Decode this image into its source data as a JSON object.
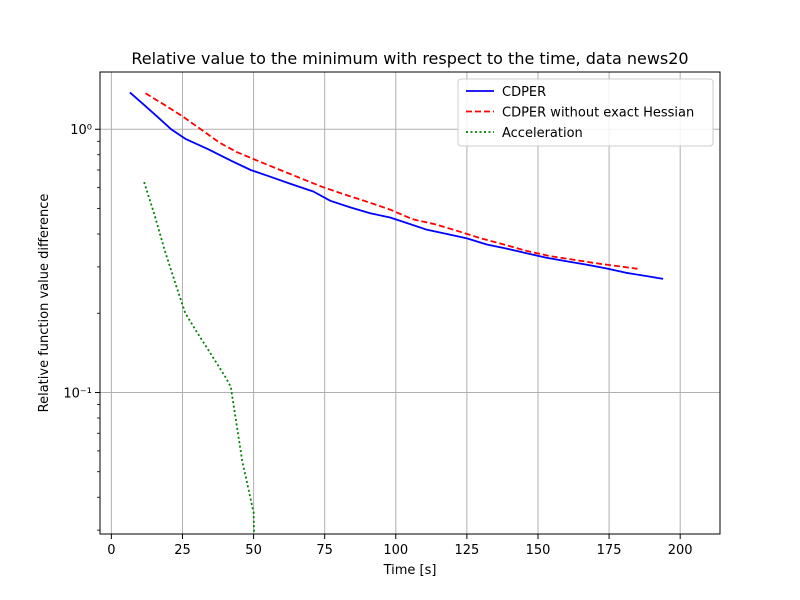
{
  "chart_data": {
    "type": "line",
    "title": "Relative value to the minimum with respect to the time, data news20",
    "xlabel": "Time [s]",
    "ylabel": "Relative function value difference",
    "xlim": [
      -4,
      214
    ],
    "ylim": [
      0.029,
      1.65
    ],
    "yscale": "log",
    "grid": true,
    "legend_position": "top-right",
    "x_ticks": [
      0,
      25,
      50,
      75,
      100,
      125,
      150,
      175,
      200
    ],
    "x_tick_labels": [
      "0",
      "25",
      "50",
      "75",
      "100",
      "125",
      "150",
      "175",
      "200"
    ],
    "y_ticks": [
      0.1,
      1.0
    ],
    "y_tick_labels": [
      "10⁻¹",
      "10⁰"
    ],
    "series": [
      {
        "name": "CDPER",
        "color": "#0000ff",
        "dash": "solid",
        "x": [
          6.5,
          11,
          16,
          21,
          26,
          34,
          42,
          49,
          56,
          63,
          71,
          77,
          84,
          91,
          98,
          104,
          111,
          118,
          125,
          132,
          139,
          146,
          153,
          160,
          167,
          174,
          181,
          188,
          194
        ],
        "y": [
          1.38,
          1.25,
          1.12,
          1.0,
          0.92,
          0.84,
          0.76,
          0.7,
          0.66,
          0.62,
          0.58,
          0.535,
          0.505,
          0.48,
          0.462,
          0.44,
          0.415,
          0.4,
          0.385,
          0.365,
          0.352,
          0.338,
          0.325,
          0.315,
          0.306,
          0.296,
          0.285,
          0.277,
          0.27
        ]
      },
      {
        "name": "CDPER without exact Hessian",
        "color": "#ff0000",
        "dash": "dashed",
        "x": [
          12,
          18,
          25,
          32,
          38,
          44,
          50,
          58,
          66,
          74,
          82,
          90,
          98,
          106,
          114,
          122,
          130,
          138,
          146,
          154,
          162,
          170,
          178,
          185
        ],
        "y": [
          1.37,
          1.25,
          1.12,
          0.99,
          0.89,
          0.82,
          0.77,
          0.71,
          0.655,
          0.605,
          0.565,
          0.53,
          0.495,
          0.455,
          0.435,
          0.41,
          0.385,
          0.365,
          0.345,
          0.33,
          0.32,
          0.31,
          0.302,
          0.295
        ]
      },
      {
        "name": "Acceleration",
        "color": "#008000",
        "dash": "dotted",
        "x": [
          11.5,
          15,
          19,
          23,
          26,
          30,
          35,
          40,
          42,
          46,
          50,
          50.2
        ],
        "y": [
          0.63,
          0.48,
          0.34,
          0.25,
          0.2,
          0.17,
          0.14,
          0.115,
          0.105,
          0.055,
          0.035,
          0.029
        ]
      }
    ]
  }
}
